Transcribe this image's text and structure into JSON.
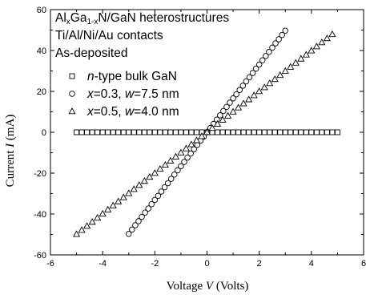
{
  "chart_data": {
    "type": "scatter",
    "xlabel": "Voltage V (Volts)",
    "ylabel": "Current I (mA)",
    "xlim": [
      -6,
      6
    ],
    "ylim": [
      -60,
      60
    ],
    "xticks": [
      -6,
      -4,
      -2,
      0,
      2,
      4,
      6
    ],
    "yticks": [
      -60,
      -40,
      -20,
      0,
      20,
      40,
      60
    ],
    "grid": false,
    "legend_position": "top-left",
    "annotations": [
      "AlxGa1-xN/GaN heterostructures",
      "Ti/Al/Ni/Au contacts",
      "As-deposited"
    ],
    "series": [
      {
        "name": "n-type bulk GaN",
        "marker": "square",
        "x": [
          -5.0,
          -4.8,
          -4.6,
          -4.4,
          -4.2,
          -4.0,
          -3.8,
          -3.6,
          -3.4,
          -3.2,
          -3.0,
          -2.8,
          -2.6,
          -2.4,
          -2.2,
          -2.0,
          -1.8,
          -1.6,
          -1.4,
          -1.2,
          -1.0,
          -0.8,
          -0.6,
          -0.4,
          -0.2,
          0.0,
          0.2,
          0.4,
          0.6,
          0.8,
          1.0,
          1.2,
          1.4,
          1.6,
          1.8,
          2.0,
          2.2,
          2.4,
          2.6,
          2.8,
          3.0,
          3.2,
          3.4,
          3.6,
          3.8,
          4.0,
          4.2,
          4.4,
          4.6,
          4.8,
          5.0
        ],
        "y": [
          0,
          0,
          0,
          0,
          0,
          0,
          0,
          0,
          0,
          0,
          0,
          0,
          0,
          0,
          0,
          0,
          0,
          0,
          0,
          0,
          0,
          0,
          0,
          0,
          0,
          0,
          0,
          0,
          0,
          0,
          0,
          0,
          0,
          0,
          0,
          0,
          0,
          0,
          0,
          0,
          0,
          0,
          0,
          0,
          0,
          0,
          0,
          0,
          0,
          0,
          0
        ]
      },
      {
        "name": "x=0.3, w=7.5 nm",
        "marker": "circle",
        "x": [
          -3.0,
          -2.875,
          -2.75,
          -2.625,
          -2.5,
          -2.375,
          -2.25,
          -2.125,
          -2.0,
          -1.875,
          -1.75,
          -1.625,
          -1.5,
          -1.375,
          -1.25,
          -1.125,
          -1.0,
          -0.875,
          -0.75,
          -0.625,
          -0.5,
          -0.375,
          -0.25,
          -0.125,
          0.0,
          0.125,
          0.25,
          0.375,
          0.5,
          0.625,
          0.75,
          0.875,
          1.0,
          1.125,
          1.25,
          1.375,
          1.5,
          1.625,
          1.75,
          1.875,
          2.0,
          2.125,
          2.25,
          2.375,
          2.5,
          2.625,
          2.75,
          2.875,
          3.0
        ],
        "y": [
          -49.7,
          -47.6,
          -45.5,
          -43.5,
          -41.4,
          -39.3,
          -37.3,
          -35.2,
          -33.1,
          -31.1,
          -29.0,
          -26.9,
          -24.9,
          -22.8,
          -20.7,
          -18.6,
          -16.6,
          -14.5,
          -12.4,
          -10.4,
          -8.3,
          -6.2,
          -4.1,
          -2.1,
          0.0,
          2.1,
          4.1,
          6.2,
          8.3,
          10.4,
          12.4,
          14.5,
          16.6,
          18.6,
          20.7,
          22.8,
          24.9,
          26.9,
          29.0,
          31.1,
          33.1,
          35.2,
          37.3,
          39.3,
          41.4,
          43.5,
          45.5,
          47.6,
          49.7
        ]
      },
      {
        "name": "x=0.5, w=4.0 nm",
        "marker": "triangle",
        "x": [
          -5.0,
          -4.8,
          -4.6,
          -4.4,
          -4.2,
          -4.0,
          -3.8,
          -3.6,
          -3.4,
          -3.2,
          -3.0,
          -2.8,
          -2.6,
          -2.4,
          -2.2,
          -2.0,
          -1.8,
          -1.6,
          -1.4,
          -1.2,
          -1.0,
          -0.8,
          -0.6,
          -0.4,
          -0.2,
          0.0,
          0.2,
          0.4,
          0.6,
          0.8,
          1.0,
          1.2,
          1.4,
          1.6,
          1.8,
          2.0,
          2.2,
          2.4,
          2.6,
          2.8,
          3.0,
          3.2,
          3.4,
          3.6,
          3.8,
          4.0,
          4.2,
          4.4,
          4.6,
          4.8
        ],
        "y": [
          -49.9,
          -47.9,
          -45.9,
          -43.9,
          -41.9,
          -39.9,
          -37.9,
          -35.9,
          -33.9,
          -31.9,
          -29.9,
          -27.9,
          -25.9,
          -23.9,
          -21.9,
          -20.0,
          -18.0,
          -16.0,
          -14.0,
          -12.0,
          -10.0,
          -8.0,
          -6.0,
          -4.0,
          -2.0,
          0.0,
          2.0,
          4.0,
          6.0,
          8.0,
          10.0,
          12.0,
          14.0,
          16.0,
          18.0,
          20.0,
          21.9,
          23.9,
          25.9,
          27.9,
          29.9,
          31.9,
          33.9,
          35.9,
          37.9,
          39.9,
          41.9,
          43.9,
          45.9,
          47.9
        ]
      }
    ]
  }
}
